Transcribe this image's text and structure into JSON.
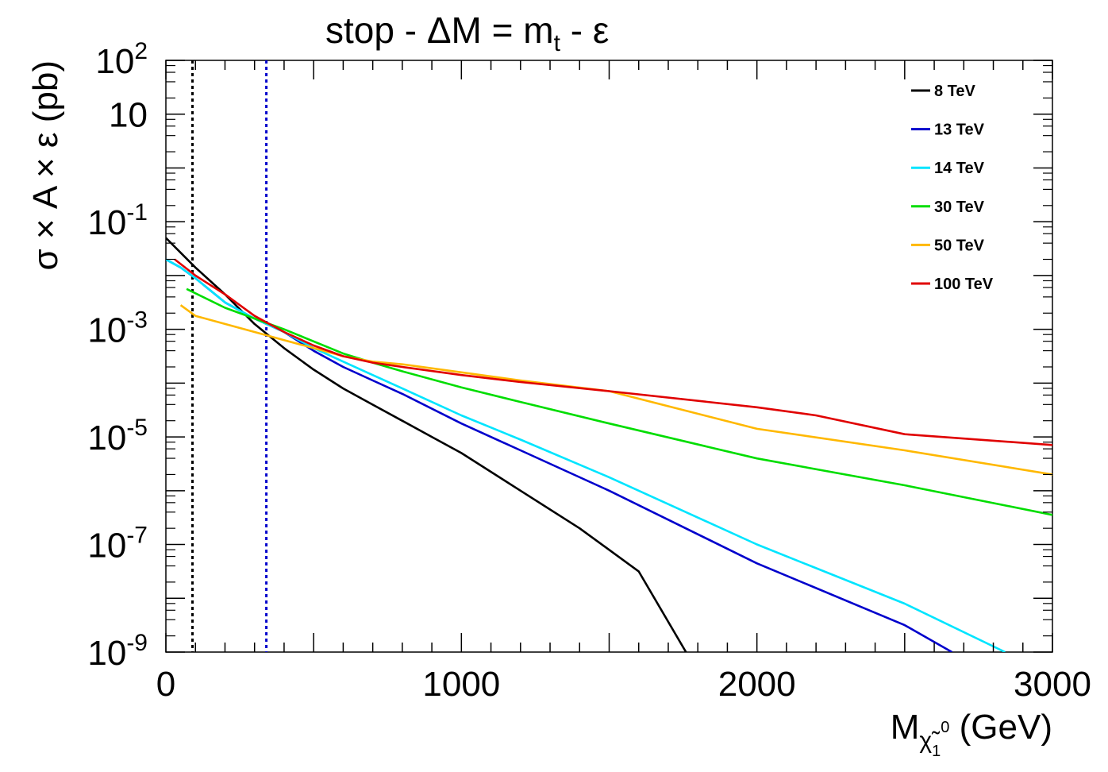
{
  "chart_data": {
    "type": "line",
    "title": "stop - ΔM = m",
    "title_subscript": "t",
    "title_suffix": " - ε",
    "xlabel": "M",
    "xlabel_sub": "χ̃",
    "xlabel_sub_index": "1",
    "xlabel_sup": "0",
    "xlabel_unit": " (GeV)",
    "ylabel": "σ × A × ε (pb)",
    "xlim": [
      0,
      3000
    ],
    "ylim_log10": [
      -9,
      2
    ],
    "y_scale": "log",
    "x_tick_labels": [
      "0",
      "1000",
      "2000",
      "3000"
    ],
    "y_tick_labels": [
      {
        "base": "10",
        "exp": "2",
        "log": 2
      },
      {
        "base": "10",
        "exp": "",
        "log": 1
      },
      {
        "base": "10",
        "exp": "-1",
        "log": -1
      },
      {
        "base": "10",
        "exp": "-3",
        "log": -3
      },
      {
        "base": "10",
        "exp": "-5",
        "log": -5
      },
      {
        "base": "10",
        "exp": "-7",
        "log": -7
      },
      {
        "base": "10",
        "exp": "-9",
        "log": -9
      }
    ],
    "legend_position": "top-right",
    "vertical_lines": [
      {
        "x": 90,
        "color": "#000000",
        "style": "dotted"
      },
      {
        "x": 340,
        "color": "#0000cc",
        "style": "dotted"
      }
    ],
    "series": [
      {
        "name": "8 TeV",
        "color": "#000000",
        "x": [
          0,
          100,
          200,
          300,
          400,
          500,
          600,
          700,
          800,
          900,
          1000,
          1200,
          1400,
          1600,
          1760
        ],
        "log10_y": [
          -1.3,
          -1.85,
          -2.35,
          -2.9,
          -3.35,
          -3.75,
          -4.1,
          -4.4,
          -4.7,
          -5.0,
          -5.3,
          -6.0,
          -6.7,
          -7.5,
          -9.0
        ]
      },
      {
        "name": "13 TeV",
        "color": "#0000cc",
        "x": [
          0,
          50,
          100,
          200,
          300,
          400,
          500,
          600,
          700,
          800,
          1000,
          1200,
          1500,
          2000,
          2500,
          2660
        ],
        "log10_y": [
          -1.7,
          -1.85,
          -2.05,
          -2.5,
          -2.8,
          -3.05,
          -3.4,
          -3.7,
          -3.95,
          -4.2,
          -4.75,
          -5.25,
          -6.0,
          -7.35,
          -8.5,
          -9.0
        ]
      },
      {
        "name": "14 TeV",
        "color": "#00e5ff",
        "x": [
          0,
          50,
          100,
          200,
          300,
          400,
          500,
          600,
          700,
          800,
          1000,
          1200,
          1500,
          2000,
          2500,
          2840
        ],
        "log10_y": [
          -1.7,
          -1.85,
          -2.05,
          -2.5,
          -2.8,
          -3.05,
          -3.35,
          -3.6,
          -3.85,
          -4.1,
          -4.6,
          -5.05,
          -5.75,
          -7.0,
          -8.1,
          -9.0
        ]
      },
      {
        "name": "30 TeV",
        "color": "#00dd00",
        "x": [
          70,
          200,
          400,
          600,
          700,
          800,
          1000,
          1200,
          1500,
          2000,
          2500,
          3000
        ],
        "log10_y": [
          -2.25,
          -2.6,
          -3.0,
          -3.45,
          -3.62,
          -3.78,
          -4.08,
          -4.35,
          -4.75,
          -5.4,
          -5.9,
          -6.45
        ]
      },
      {
        "name": "50 TeV",
        "color": "#ffb800",
        "x": [
          50,
          100,
          200,
          300,
          400,
          500,
          600,
          700,
          800,
          1000,
          1200,
          1500,
          2000,
          2500,
          3000
        ],
        "log10_y": [
          -2.55,
          -2.75,
          -2.9,
          -3.05,
          -3.2,
          -3.35,
          -3.5,
          -3.6,
          -3.65,
          -3.8,
          -3.95,
          -4.15,
          -4.85,
          -5.25,
          -5.7
        ]
      },
      {
        "name": "100 TeV",
        "color": "#e00000",
        "x": [
          30,
          100,
          200,
          300,
          400,
          500,
          600,
          700,
          800,
          1000,
          1200,
          1500,
          2000,
          2200,
          2500,
          3000
        ],
        "log10_y": [
          -1.7,
          -2.0,
          -2.35,
          -2.75,
          -3.05,
          -3.3,
          -3.5,
          -3.62,
          -3.7,
          -3.85,
          -3.98,
          -4.15,
          -4.45,
          -4.6,
          -4.95,
          -5.15
        ]
      }
    ]
  }
}
